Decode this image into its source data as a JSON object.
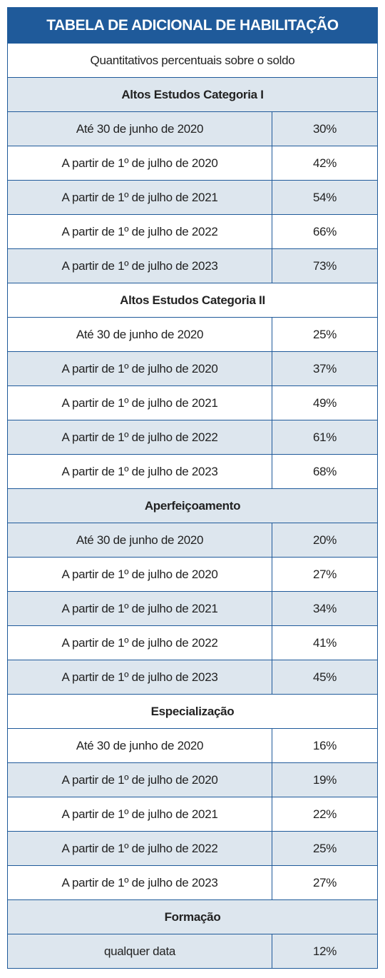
{
  "header": {
    "title": "TABELA DE ADICIONAL DE HABILITAÇÃO",
    "subtitle": "Quantitativos percentuais sobre o soldo"
  },
  "sections": [
    {
      "heading": "Altos Estudos Categoria I",
      "rows": [
        [
          "Até 30 de junho de 2020",
          "30%"
        ],
        [
          "A partir de 1º de julho de 2020",
          "42%"
        ],
        [
          "A partir de 1º de julho de 2021",
          "54%"
        ],
        [
          "A partir de 1º de julho de 2022",
          "66%"
        ],
        [
          "A partir de 1º de julho de 2023",
          "73%"
        ]
      ]
    },
    {
      "heading": "Altos Estudos Categoria II",
      "rows": [
        [
          "Até 30 de junho de 2020",
          "25%"
        ],
        [
          "A partir de 1º de julho de 2020",
          "37%"
        ],
        [
          "A partir de 1º de julho de 2021",
          "49%"
        ],
        [
          "A partir de 1º de julho de 2022",
          "61%"
        ],
        [
          "A partir de 1º de julho de 2023",
          "68%"
        ]
      ]
    },
    {
      "heading": "Aperfeiçoamento",
      "rows": [
        [
          "Até 30 de junho de 2020",
          "20%"
        ],
        [
          "A partir de 1º de julho de 2020",
          "27%"
        ],
        [
          "A partir de 1º de julho de 2021",
          "34%"
        ],
        [
          "A partir de 1º de julho de 2022",
          "41%"
        ],
        [
          "A partir de 1º de julho de 2023",
          "45%"
        ]
      ]
    },
    {
      "heading": "Especialização",
      "rows": [
        [
          "Até 30 de junho de 2020",
          "16%"
        ],
        [
          "A partir de 1º de julho de 2020",
          "19%"
        ],
        [
          "A partir de 1º de julho de 2021",
          "22%"
        ],
        [
          "A partir de 1º de julho de 2022",
          "25%"
        ],
        [
          "A partir de 1º de julho de 2023",
          "27%"
        ]
      ]
    },
    {
      "heading": "Formação",
      "rows": [
        [
          "qualquer data",
          "12%"
        ]
      ]
    }
  ]
}
